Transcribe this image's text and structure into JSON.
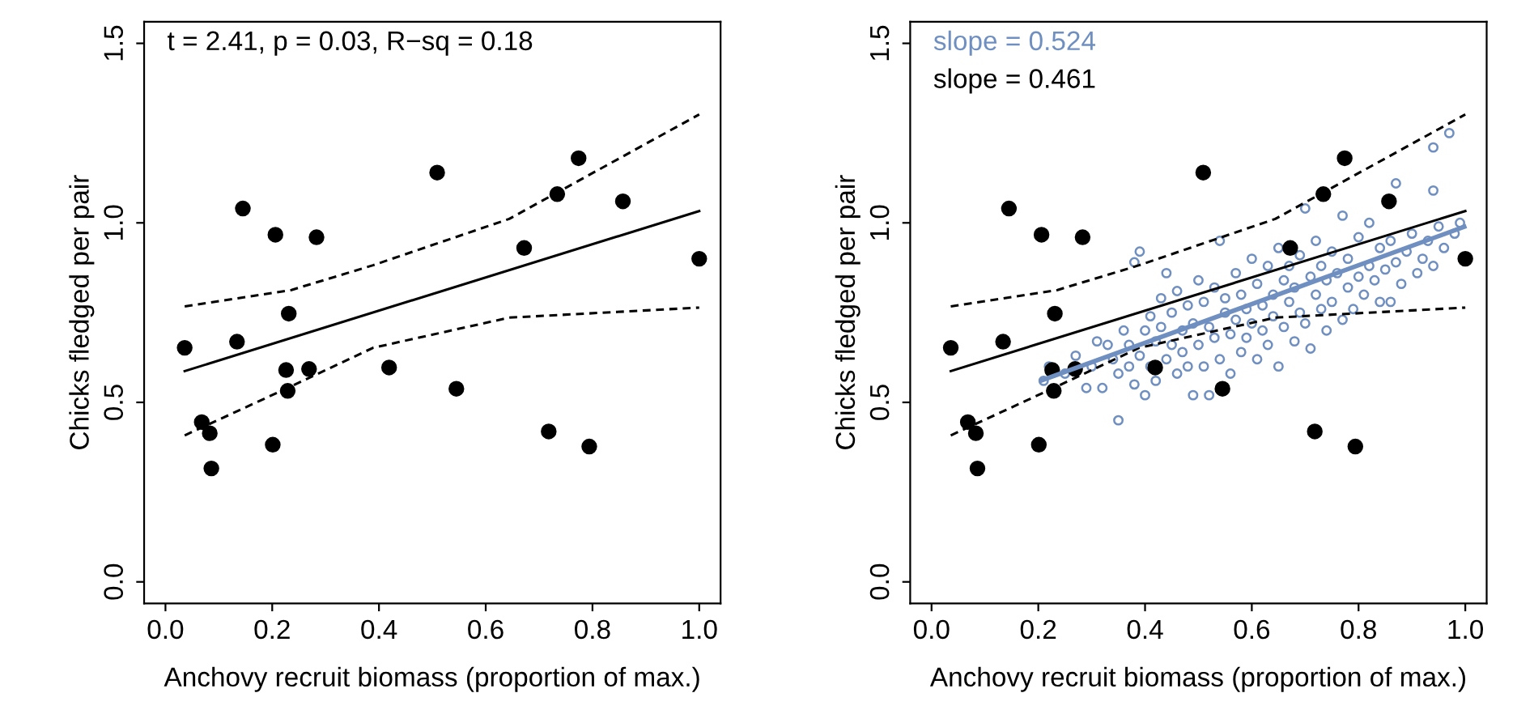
{
  "chart_data": [
    {
      "type": "scatter",
      "xlabel": "Anchovy recruit biomass (proportion of max.)",
      "ylabel": "Chicks fledged per pair",
      "xlim": [
        -0.04,
        1.04
      ],
      "ylim": [
        -0.06,
        1.56
      ],
      "xticks": [
        {
          "value": 0,
          "label": "0.0"
        },
        {
          "value": 0.2,
          "label": "0.2"
        },
        {
          "value": 0.4,
          "label": "0.4"
        },
        {
          "value": 0.6,
          "label": "0.6"
        },
        {
          "value": 0.8,
          "label": "0.8"
        },
        {
          "value": 1,
          "label": "1.0"
        }
      ],
      "yticks": [
        {
          "value": 0,
          "label": "0.0"
        },
        {
          "value": 0.5,
          "label": "0.5"
        },
        {
          "value": 1,
          "label": "1.0"
        },
        {
          "value": 1.5,
          "label": "1.5"
        }
      ],
      "grid": false,
      "legend": false,
      "annotations": [
        "t = 2.41, p = 0.03, R−sq = 0.18"
      ],
      "series": [
        {
          "type": "scatter",
          "color": "#000000",
          "marker": "circle",
          "x": [
            0.036,
            0.068,
            0.083,
            0.086,
            0.134,
            0.145,
            0.201,
            0.206,
            0.226,
            0.229,
            0.231,
            0.269,
            0.283,
            0.419,
            0.509,
            0.545,
            0.672,
            0.718,
            0.734,
            0.774,
            0.794,
            0.857,
            1.0
          ],
          "values": [
            0.652,
            0.445,
            0.414,
            0.316,
            0.669,
            1.04,
            0.382,
            0.967,
            0.59,
            0.532,
            0.747,
            0.593,
            0.96,
            0.597,
            1.14,
            0.538,
            0.93,
            0.419,
            1.08,
            1.18,
            0.377,
            1.06,
            0.9
          ]
        },
        {
          "type": "line",
          "color": "#000000",
          "line_style": "solid",
          "x": [
            0.036,
            1.0
          ],
          "values": [
            0.587,
            1.033
          ]
        },
        {
          "type": "line",
          "color": "#000000",
          "line_style": "dashed",
          "x": [
            0.036,
            0.236,
            0.389,
            0.644,
            1.0
          ],
          "values": [
            0.767,
            0.813,
            0.882,
            1.011,
            1.302
          ]
        },
        {
          "type": "line",
          "color": "#000000",
          "line_style": "dashed",
          "x": [
            0.036,
            0.236,
            0.389,
            0.644,
            1.0
          ],
          "values": [
            0.408,
            0.545,
            0.652,
            0.736,
            0.764
          ]
        }
      ]
    },
    {
      "type": "scatter",
      "xlabel": "Anchovy recruit biomass (proportion of max.)",
      "ylabel": "Chicks fledged per pair",
      "xlim": [
        -0.04,
        1.04
      ],
      "ylim": [
        -0.06,
        1.56
      ],
      "xticks": [
        {
          "value": 0,
          "label": "0.0"
        },
        {
          "value": 0.2,
          "label": "0.2"
        },
        {
          "value": 0.4,
          "label": "0.4"
        },
        {
          "value": 0.6,
          "label": "0.6"
        },
        {
          "value": 0.8,
          "label": "0.8"
        },
        {
          "value": 1,
          "label": "1.0"
        }
      ],
      "yticks": [
        {
          "value": 0,
          "label": "0.0"
        },
        {
          "value": 0.5,
          "label": "0.5"
        },
        {
          "value": 1,
          "label": "1.0"
        },
        {
          "value": 1.5,
          "label": "1.5"
        }
      ],
      "grid": false,
      "legend": false,
      "annotations": [
        "slope = 0.524",
        "slope = 0.461"
      ],
      "series": [
        {
          "type": "scatter",
          "color": "#6f8fc0",
          "x": [
            0.21,
            0.22,
            0.25,
            0.27,
            0.29,
            0.3,
            0.31,
            0.32,
            0.33,
            0.34,
            0.35,
            0.35,
            0.36,
            0.37,
            0.37,
            0.38,
            0.38,
            0.39,
            0.39,
            0.4,
            0.4,
            0.41,
            0.41,
            0.42,
            0.42,
            0.43,
            0.43,
            0.44,
            0.44,
            0.45,
            0.45,
            0.46,
            0.46,
            0.47,
            0.47,
            0.48,
            0.48,
            0.49,
            0.49,
            0.5,
            0.5,
            0.51,
            0.51,
            0.52,
            0.52,
            0.53,
            0.53,
            0.54,
            0.54,
            0.55,
            0.55,
            0.56,
            0.56,
            0.57,
            0.57,
            0.58,
            0.58,
            0.59,
            0.59,
            0.6,
            0.6,
            0.61,
            0.61,
            0.62,
            0.62,
            0.63,
            0.63,
            0.64,
            0.64,
            0.65,
            0.65,
            0.66,
            0.66,
            0.67,
            0.67,
            0.68,
            0.68,
            0.69,
            0.69,
            0.7,
            0.7,
            0.71,
            0.71,
            0.72,
            0.72,
            0.73,
            0.73,
            0.74,
            0.74,
            0.75,
            0.75,
            0.76,
            0.77,
            0.77,
            0.78,
            0.78,
            0.79,
            0.8,
            0.8,
            0.81,
            0.82,
            0.82,
            0.83,
            0.84,
            0.84,
            0.85,
            0.86,
            0.86,
            0.87,
            0.87,
            0.88,
            0.89,
            0.9,
            0.91,
            0.92,
            0.93,
            0.94,
            0.94,
            0.95,
            0.96,
            0.97,
            0.98,
            0.99,
            0.94
          ],
          "values": [
            0.56,
            0.6,
            0.58,
            0.63,
            0.54,
            0.6,
            0.67,
            0.54,
            0.66,
            0.62,
            0.45,
            0.58,
            0.7,
            0.6,
            0.66,
            0.89,
            0.55,
            0.92,
            0.63,
            0.7,
            0.52,
            0.74,
            0.6,
            0.67,
            0.56,
            0.79,
            0.71,
            0.86,
            0.62,
            0.75,
            0.66,
            0.58,
            0.81,
            0.7,
            0.64,
            0.77,
            0.6,
            0.52,
            0.72,
            0.84,
            0.66,
            0.78,
            0.6,
            0.71,
            0.52,
            0.82,
            0.68,
            0.95,
            0.62,
            0.75,
            0.79,
            0.69,
            0.58,
            0.86,
            0.73,
            0.64,
            0.8,
            0.76,
            0.68,
            0.9,
            0.72,
            0.62,
            0.83,
            0.77,
            0.7,
            0.88,
            0.66,
            0.8,
            0.74,
            0.93,
            0.6,
            0.84,
            0.71,
            0.78,
            0.88,
            0.67,
            0.82,
            0.75,
            0.91,
            1.04,
            0.72,
            0.85,
            0.65,
            0.8,
            0.95,
            0.76,
            0.88,
            0.7,
            0.84,
            0.92,
            0.78,
            0.86,
            0.73,
            1.02,
            0.82,
            0.9,
            0.76,
            0.96,
            0.85,
            0.8,
            0.88,
            1.0,
            0.84,
            0.93,
            0.78,
            0.87,
            0.78,
            0.95,
            1.11,
            0.89,
            0.83,
            0.92,
            0.97,
            0.86,
            0.9,
            0.95,
            1.09,
            0.88,
            0.99,
            0.93,
            1.25,
            0.97,
            1.0,
            1.21
          ]
        },
        {
          "type": "scatter",
          "color": "#000000",
          "marker": "circle",
          "x": [
            0.036,
            0.068,
            0.083,
            0.086,
            0.134,
            0.145,
            0.201,
            0.206,
            0.226,
            0.229,
            0.231,
            0.269,
            0.283,
            0.419,
            0.509,
            0.545,
            0.672,
            0.718,
            0.734,
            0.774,
            0.794,
            0.857,
            1.0
          ],
          "values": [
            0.652,
            0.445,
            0.414,
            0.316,
            0.669,
            1.04,
            0.382,
            0.967,
            0.59,
            0.532,
            0.747,
            0.593,
            0.96,
            0.597,
            1.14,
            0.538,
            0.93,
            0.419,
            1.08,
            1.18,
            0.377,
            1.06,
            0.9
          ]
        },
        {
          "type": "line",
          "color": "#000000",
          "line_style": "solid",
          "x": [
            0.036,
            1.0
          ],
          "values": [
            0.587,
            1.033
          ]
        },
        {
          "type": "line",
          "color": "#000000",
          "line_style": "dashed",
          "x": [
            0.036,
            0.236,
            0.389,
            0.644,
            1.0
          ],
          "values": [
            0.767,
            0.813,
            0.882,
            1.011,
            1.302
          ]
        },
        {
          "type": "line",
          "color": "#000000",
          "line_style": "dashed",
          "x": [
            0.036,
            0.236,
            0.389,
            0.644,
            1.0
          ],
          "values": [
            0.408,
            0.545,
            0.652,
            0.736,
            0.764
          ]
        },
        {
          "type": "line",
          "color": "#6f8fc0",
          "line_style": "solid",
          "x": [
            0.206,
            0.998
          ],
          "values": [
            0.561,
            0.989
          ]
        }
      ]
    }
  ]
}
